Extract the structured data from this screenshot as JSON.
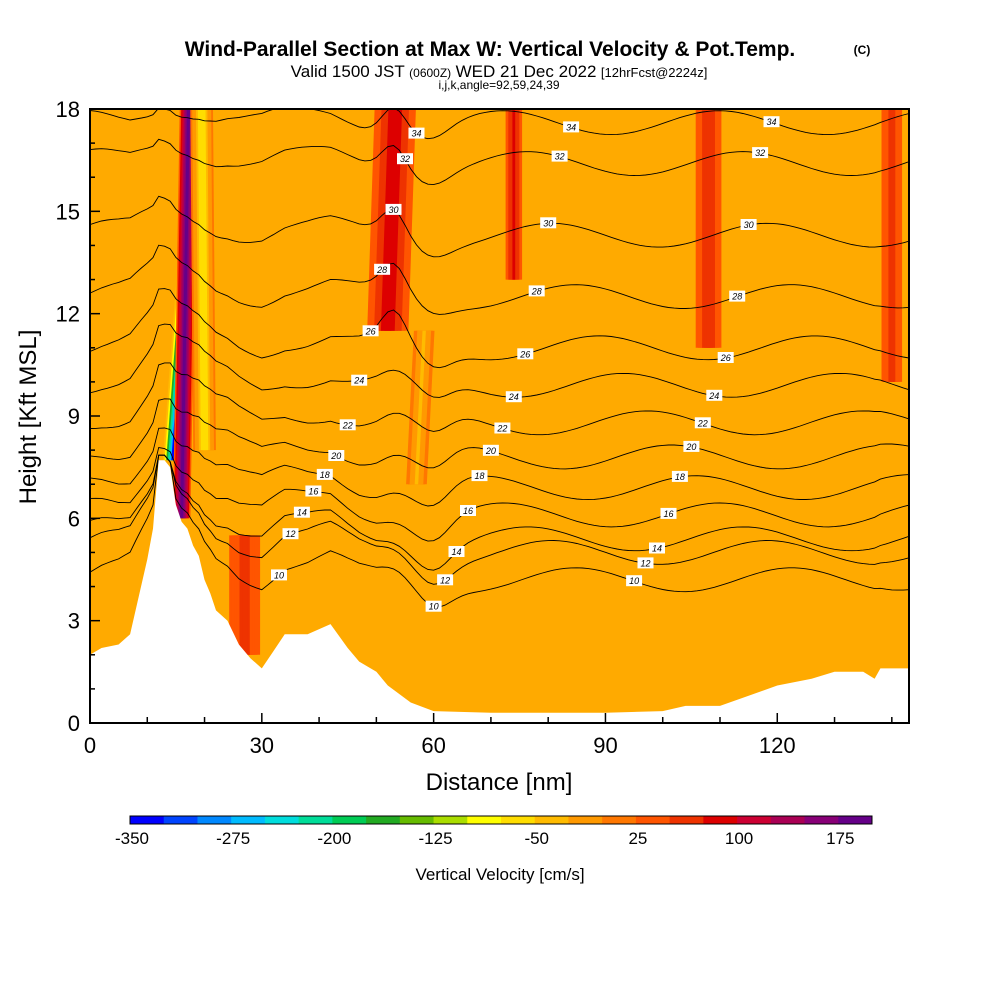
{
  "chart_data": {
    "type": "heatmap",
    "title": "Wind-Parallel Section at Max W: Vertical Velocity & Pot.Temp.",
    "title_mark": "(C)",
    "subtitle_prefix": "Valid 1500 JST",
    "subtitle_utc": "(0600Z)",
    "subtitle_date": "WED 21 Dec 2022",
    "subtitle_fcst": "[12hrFcst@2224z]",
    "subtitle_indices": "i,j,k,angle=92,59,24,39",
    "xlabel": "Distance [nm]",
    "ylabel": "Height [Kft MSL]",
    "xlim": [
      0,
      143
    ],
    "ylim": [
      0,
      18
    ],
    "x_ticks": [
      0,
      30,
      60,
      90,
      120
    ],
    "y_ticks": [
      0,
      3,
      6,
      9,
      12,
      15,
      18
    ],
    "colorbar": {
      "label": "Vertical Velocity [cm/s]",
      "ticks": [
        "-350",
        "-275",
        "-200",
        "-125",
        "-50",
        "25",
        "100",
        "175"
      ],
      "colors": [
        "#0000ff",
        "#0044ff",
        "#0088ff",
        "#00bbff",
        "#00dddd",
        "#00dd99",
        "#00cc55",
        "#22aa22",
        "#66bb00",
        "#aadd00",
        "#ffff00",
        "#ffdd00",
        "#ffbb00",
        "#ff9900",
        "#ff7700",
        "#ff5500",
        "#ee3300",
        "#dd0000",
        "#cc0033",
        "#aa0055",
        "#880077",
        "#660088"
      ]
    },
    "theta_contours": [
      {
        "label": "10",
        "base": 4.2
      },
      {
        "label": "12",
        "base": 5.0
      },
      {
        "label": "14",
        "base": 5.4
      },
      {
        "label": "16",
        "base": 6.1
      },
      {
        "label": "18",
        "base": 6.9
      },
      {
        "label": "20",
        "base": 7.8
      },
      {
        "label": "22",
        "base": 8.8
      },
      {
        "label": "24",
        "base": 9.9
      },
      {
        "label": "26",
        "base": 11.0
      },
      {
        "label": "28",
        "base": 12.5
      },
      {
        "label": "30",
        "base": 14.3
      },
      {
        "label": "32",
        "base": 16.4
      },
      {
        "label": "34",
        "base": 17.6
      }
    ],
    "terrain_profile": [
      [
        0,
        2.0
      ],
      [
        2,
        2.2
      ],
      [
        5,
        2.3
      ],
      [
        7,
        2.6
      ],
      [
        10,
        4.8
      ],
      [
        11,
        5.7
      ],
      [
        12,
        7.7
      ],
      [
        13,
        7.7
      ],
      [
        14,
        7.5
      ],
      [
        15,
        6.4
      ],
      [
        16,
        5.9
      ],
      [
        17,
        5.7
      ],
      [
        18,
        5.2
      ],
      [
        19,
        4.9
      ],
      [
        20,
        4.2
      ],
      [
        21,
        3.8
      ],
      [
        22,
        3.3
      ],
      [
        24,
        3.0
      ],
      [
        26,
        2.3
      ],
      [
        28,
        1.9
      ],
      [
        30,
        1.6
      ],
      [
        32,
        2.1
      ],
      [
        34,
        2.6
      ],
      [
        38,
        2.6
      ],
      [
        42,
        2.9
      ],
      [
        45,
        2.2
      ],
      [
        47,
        1.8
      ],
      [
        50,
        1.5
      ],
      [
        52,
        1.1
      ],
      [
        56,
        0.6
      ],
      [
        60,
        0.35
      ],
      [
        70,
        0.3
      ],
      [
        80,
        0.3
      ],
      [
        90,
        0.3
      ],
      [
        100,
        0.35
      ],
      [
        104,
        0.5
      ],
      [
        110,
        0.5
      ],
      [
        115,
        0.8
      ],
      [
        120,
        1.1
      ],
      [
        126,
        1.3
      ],
      [
        130,
        1.5
      ],
      [
        135,
        1.5
      ],
      [
        137,
        1.3
      ],
      [
        138,
        1.6
      ],
      [
        143,
        1.6
      ]
    ],
    "velocity_features": [
      {
        "x": 14.5,
        "y_from": 7.7,
        "y_to": 18,
        "value": -340,
        "width": 2.0,
        "tilt": 0.45
      },
      {
        "x": 16.0,
        "y_from": 6.0,
        "y_to": 18,
        "value": 170,
        "width": 1.7,
        "tilt": 0.1
      },
      {
        "x": 20.0,
        "y_from": 8.0,
        "y_to": 18,
        "value": -80,
        "width": 2.2,
        "tilt": -0.05
      },
      {
        "x": 52.0,
        "y_from": 11.5,
        "y_to": 18,
        "value": 80,
        "width": 4.0,
        "tilt": 0.2
      },
      {
        "x": 57.0,
        "y_from": 7.0,
        "y_to": 11.5,
        "value": -40,
        "width": 2.0,
        "tilt": 0.3
      },
      {
        "x": 74.0,
        "y_from": 13.0,
        "y_to": 18,
        "value": 70,
        "width": 1.6,
        "tilt": 0.0
      },
      {
        "x": 108.0,
        "y_from": 11.0,
        "y_to": 18,
        "value": 60,
        "width": 2.5,
        "tilt": 0.0
      },
      {
        "x": 140.0,
        "y_from": 10.0,
        "y_to": 18,
        "value": 50,
        "width": 2.0,
        "tilt": 0.0
      },
      {
        "x": 27.0,
        "y_from": 2.0,
        "y_to": 5.5,
        "value": 45,
        "width": 3.0,
        "tilt": 0.0
      }
    ]
  }
}
